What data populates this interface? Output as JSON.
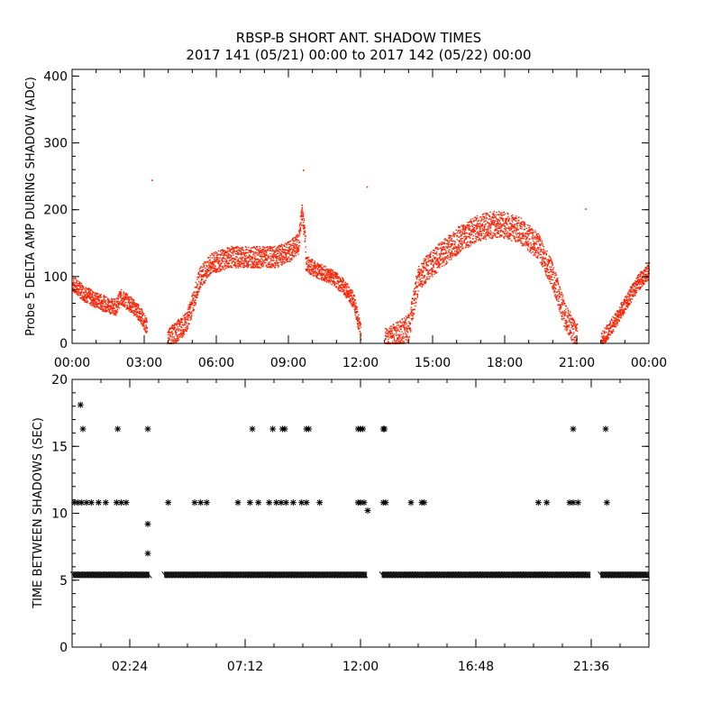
{
  "figure": {
    "title_line1": "RBSP-B SHORT ANT. SHADOW TIMES",
    "title_line2": "2017 141 (05/21) 00:00 to 2017 142 (05/22) 00:00"
  },
  "colors": {
    "top_series": "#ff2000",
    "bottom_series": "#000000",
    "axes": "#000000"
  },
  "chart_data": [
    {
      "type": "scatter",
      "title": "",
      "xlabel": "",
      "ylabel": "Probe 5 DELTA AMP DURING SHADOW (ADC)",
      "xlim_hours": [
        0,
        24
      ],
      "ylim": [
        0,
        410
      ],
      "x_tick_labels": [
        "00:00",
        "03:00",
        "06:00",
        "09:00",
        "12:00",
        "15:00",
        "18:00",
        "21:00",
        "00:00"
      ],
      "y_ticks": [
        0,
        100,
        200,
        300,
        400
      ],
      "grid": false,
      "series": [
        {
          "marker": "dot",
          "color": "#ff2000",
          "segments": [
            {
              "x": [
                0.0,
                0.5,
                1.0,
                1.5,
                1.8,
                2.0,
                2.4,
                2.8,
                3.1
              ],
              "y": [
                90,
                75,
                65,
                58,
                55,
                70,
                60,
                45,
                25
              ],
              "spread": 12
            },
            {
              "x": [
                3.95,
                4.3,
                4.7,
                5.0,
                5.3,
                5.8,
                6.5,
                7.5,
                8.5,
                9.0,
                9.4,
                9.55,
                9.7
              ],
              "y": [
                5,
                18,
                30,
                60,
                100,
                120,
                130,
                130,
                130,
                138,
                150,
                200,
                150
              ],
              "spread": 16
            },
            {
              "x": [
                9.7,
                10.2,
                10.8,
                11.3,
                11.7,
                12.0
              ],
              "y": [
                120,
                110,
                100,
                85,
                65,
                15
              ],
              "spread": 12
            },
            {
              "x": [
                13.0,
                13.6,
                14.0,
                14.4,
                14.8,
                15.4,
                16.2,
                17.0,
                17.8,
                18.6,
                19.4,
                20.0,
                20.5,
                21.0
              ],
              "y": [
                5,
                15,
                25,
                100,
                115,
                135,
                160,
                175,
                180,
                170,
                145,
                100,
                40,
                10
              ],
              "spread": 20
            },
            {
              "x": [
                22.0,
                22.5,
                23.0,
                23.5,
                24.0
              ],
              "y": [
                5,
                30,
                60,
                90,
                110
              ],
              "spread": 12
            }
          ],
          "outliers": [
            {
              "x": 3.3,
              "y": 245
            },
            {
              "x": 12.25,
              "y": 235
            },
            {
              "x": 21.35,
              "y": 202
            },
            {
              "x": 9.6,
              "y": 260
            }
          ]
        }
      ]
    },
    {
      "type": "scatter",
      "title": "",
      "xlabel": "",
      "ylabel": "TIME BETWEEN SHADOWS (SEC)",
      "xlim_hours": [
        0,
        24
      ],
      "ylim": [
        0,
        20
      ],
      "x_tick_labels": [
        "02:24",
        "07:12",
        "12:00",
        "16:48",
        "21:36"
      ],
      "y_ticks": [
        0,
        5,
        10,
        15,
        20
      ],
      "grid": false,
      "series": [
        {
          "marker": "asterisk",
          "color": "#000000",
          "baseline_value": 5.4,
          "baseline_ranges": [
            [
              0.05,
              3.2
            ],
            [
              3.85,
              12.25
            ],
            [
              12.9,
              21.55
            ],
            [
              22.0,
              24.0
            ]
          ],
          "points": [
            {
              "x": 0.35,
              "y": 18.1
            },
            {
              "x": 0.45,
              "y": 16.3
            },
            {
              "x": 1.9,
              "y": 16.3
            },
            {
              "x": 3.15,
              "y": 16.3
            },
            {
              "x": 7.5,
              "y": 16.3
            },
            {
              "x": 8.35,
              "y": 16.3
            },
            {
              "x": 8.75,
              "y": 16.3
            },
            {
              "x": 8.85,
              "y": 16.3
            },
            {
              "x": 9.75,
              "y": 16.3
            },
            {
              "x": 9.85,
              "y": 16.3
            },
            {
              "x": 11.9,
              "y": 16.3
            },
            {
              "x": 12.0,
              "y": 16.3
            },
            {
              "x": 12.1,
              "y": 16.3
            },
            {
              "x": 12.95,
              "y": 16.3
            },
            {
              "x": 13.0,
              "y": 16.3
            },
            {
              "x": 20.85,
              "y": 16.3
            },
            {
              "x": 22.2,
              "y": 16.3
            },
            {
              "x": 0.1,
              "y": 10.8
            },
            {
              "x": 0.25,
              "y": 10.8
            },
            {
              "x": 0.4,
              "y": 10.8
            },
            {
              "x": 0.6,
              "y": 10.8
            },
            {
              "x": 0.8,
              "y": 10.8
            },
            {
              "x": 1.1,
              "y": 10.8
            },
            {
              "x": 1.4,
              "y": 10.8
            },
            {
              "x": 1.85,
              "y": 10.8
            },
            {
              "x": 2.05,
              "y": 10.8
            },
            {
              "x": 2.25,
              "y": 10.8
            },
            {
              "x": 4.0,
              "y": 10.8
            },
            {
              "x": 5.1,
              "y": 10.8
            },
            {
              "x": 5.35,
              "y": 10.8
            },
            {
              "x": 5.6,
              "y": 10.8
            },
            {
              "x": 6.9,
              "y": 10.8
            },
            {
              "x": 7.4,
              "y": 10.8
            },
            {
              "x": 7.75,
              "y": 10.8
            },
            {
              "x": 8.2,
              "y": 10.8
            },
            {
              "x": 8.5,
              "y": 10.8
            },
            {
              "x": 8.7,
              "y": 10.8
            },
            {
              "x": 8.9,
              "y": 10.8
            },
            {
              "x": 9.2,
              "y": 10.8
            },
            {
              "x": 9.55,
              "y": 10.8
            },
            {
              "x": 9.75,
              "y": 10.8
            },
            {
              "x": 10.3,
              "y": 10.8
            },
            {
              "x": 11.9,
              "y": 10.8
            },
            {
              "x": 12.0,
              "y": 10.8
            },
            {
              "x": 12.15,
              "y": 10.8
            },
            {
              "x": 12.95,
              "y": 10.8
            },
            {
              "x": 13.05,
              "y": 10.8
            },
            {
              "x": 14.1,
              "y": 10.8
            },
            {
              "x": 14.55,
              "y": 10.8
            },
            {
              "x": 14.65,
              "y": 10.8
            },
            {
              "x": 19.4,
              "y": 10.8
            },
            {
              "x": 19.75,
              "y": 10.8
            },
            {
              "x": 20.7,
              "y": 10.8
            },
            {
              "x": 20.85,
              "y": 10.8
            },
            {
              "x": 21.05,
              "y": 10.8
            },
            {
              "x": 22.25,
              "y": 10.8
            },
            {
              "x": 12.3,
              "y": 10.2
            },
            {
              "x": 3.15,
              "y": 9.2
            },
            {
              "x": 3.15,
              "y": 7.0
            }
          ]
        }
      ]
    }
  ]
}
